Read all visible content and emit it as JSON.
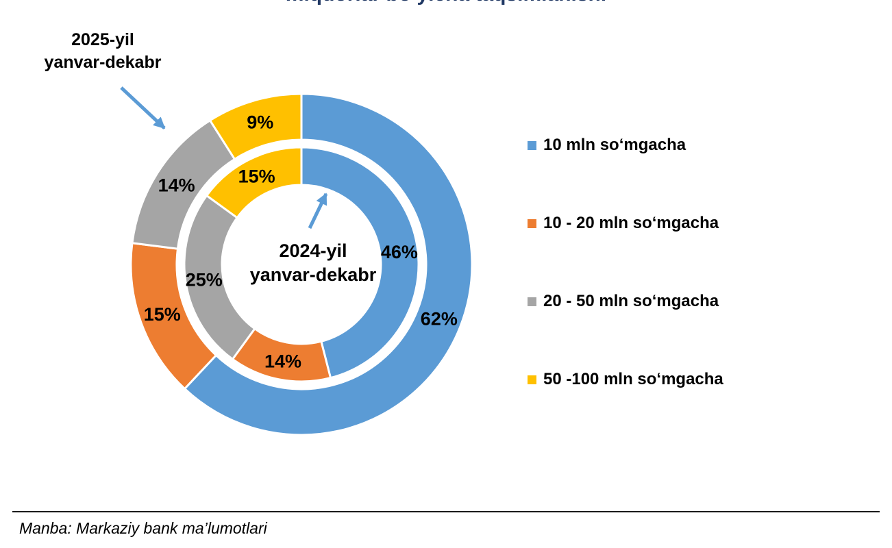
{
  "title": "miqdorlar bo‘yicha taqsimlanishi",
  "chart": {
    "outer_label_line1": "2025-yil",
    "outer_label_line2": "yanvar-dekabr",
    "inner_label_line1": "2024-yil",
    "inner_label_line2": "yanvar-dekabr"
  },
  "legend": {
    "items": [
      {
        "label": "10 mln so‘mgacha",
        "color": "#5B9BD5"
      },
      {
        "label": "10 - 20 mln so‘mgacha",
        "color": "#ED7D31"
      },
      {
        "label": "20 - 50 mln so‘mgacha",
        "color": "#A5A5A5"
      },
      {
        "label": "50 -100 mln so‘mgacha",
        "color": "#FFC000"
      }
    ]
  },
  "source": "Manba: Markaziy bank ma’lumotlari",
  "chart_data": {
    "type": "pie",
    "subtype": "nested-donut",
    "title": "miqdorlar bo‘yicha taqsimlanishi",
    "title_color": "#203864",
    "categories": [
      "10 mln so‘mgacha",
      "10 - 20 mln so‘mgacha",
      "20 - 50 mln so‘mgacha",
      "50 -100 mln so‘mgacha"
    ],
    "colors": [
      "#5B9BD5",
      "#ED7D31",
      "#A5A5A5",
      "#FFC000"
    ],
    "unit": "%",
    "start_angle_deg": 0,
    "direction": "clockwise",
    "rings": [
      {
        "name": "2025-yil yanvar-dekabr",
        "position": "outer",
        "values": [
          62,
          15,
          14,
          9
        ]
      },
      {
        "name": "2024-yil yanvar-dekabr",
        "position": "inner",
        "values": [
          46,
          14,
          25,
          15
        ]
      }
    ],
    "arrow_color": "#5B9BD5",
    "legend_position": "right",
    "source_note": "Manba: Markaziy bank ma’lumotlari"
  }
}
